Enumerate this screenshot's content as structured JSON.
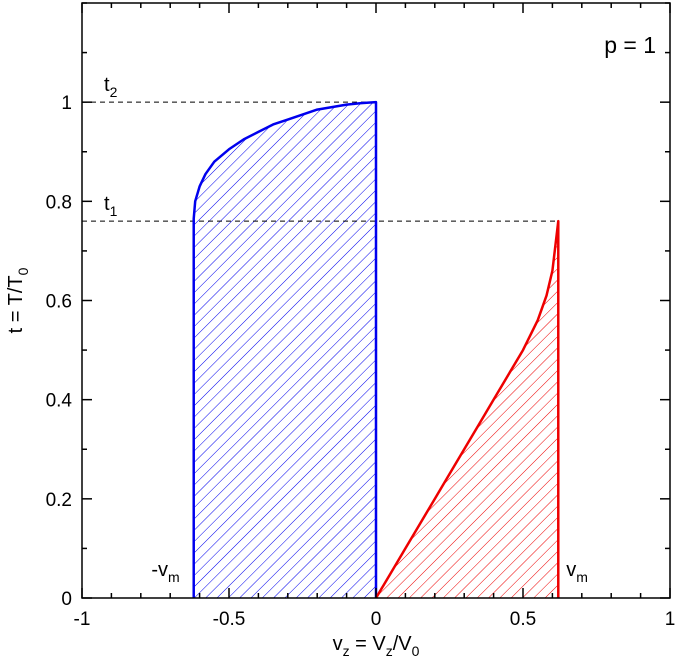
{
  "chart_data": {
    "type": "area",
    "panel_label": "p = 1",
    "xlabel": {
      "main": "v",
      "sub": "z",
      "mid": " = V",
      "sub2": "z",
      "mid2": "/V",
      "sub3": "0"
    },
    "ylabel": {
      "main": "t = T/T",
      "sub": "0"
    },
    "xlim": [
      -1,
      1
    ],
    "ylim": [
      0,
      1.2
    ],
    "x_ticks": [
      -1,
      -0.5,
      0,
      0.5,
      1
    ],
    "x_tick_labels": [
      "-1",
      "-0.5",
      "0",
      "0.5",
      "1"
    ],
    "y_ticks": [
      0,
      0.2,
      0.4,
      0.6,
      0.8,
      1
    ],
    "y_tick_labels": [
      "0",
      "0.2",
      "0.4",
      "0.6",
      "0.8",
      "1"
    ],
    "grid": false,
    "series": [
      {
        "color": "#0000ee",
        "fill": "hatched",
        "x": [
          -0.62,
          -0.62,
          -0.615,
          -0.6,
          -0.58,
          -0.55,
          -0.5,
          -0.45,
          -0.4,
          -0.35,
          -0.3,
          -0.25,
          -0.2,
          -0.15,
          -0.1,
          -0.05,
          0,
          0
        ],
        "y": [
          0,
          0.765,
          0.8,
          0.83,
          0.855,
          0.88,
          0.905,
          0.925,
          0.94,
          0.955,
          0.965,
          0.975,
          0.985,
          0.99,
          0.995,
          0.998,
          1.0,
          0
        ]
      },
      {
        "color": "#ee0000",
        "fill": "hatched",
        "x": [
          0,
          0.05,
          0.1,
          0.15,
          0.2,
          0.25,
          0.3,
          0.35,
          0.4,
          0.45,
          0.5,
          0.55,
          0.58,
          0.6,
          0.62,
          0.62
        ],
        "y": [
          0,
          0.05,
          0.1,
          0.15,
          0.2,
          0.25,
          0.3,
          0.35,
          0.4,
          0.45,
          0.5,
          0.56,
          0.61,
          0.66,
          0.76,
          0
        ]
      }
    ],
    "reference_lines": [
      {
        "y": 1.0,
        "x_from": -1,
        "x_to": 0,
        "style": "dashed",
        "label_main": "t",
        "label_sub": "2"
      },
      {
        "y": 0.76,
        "x_from": -1,
        "x_to": 0.62,
        "style": "dashed",
        "label_main": "t",
        "label_sub": "1"
      }
    ],
    "annotations": [
      {
        "text": "-v",
        "sub": "m",
        "x": -0.62,
        "y": 0
      },
      {
        "text": "v",
        "sub": "m",
        "x": 0.62,
        "y": 0
      }
    ]
  }
}
